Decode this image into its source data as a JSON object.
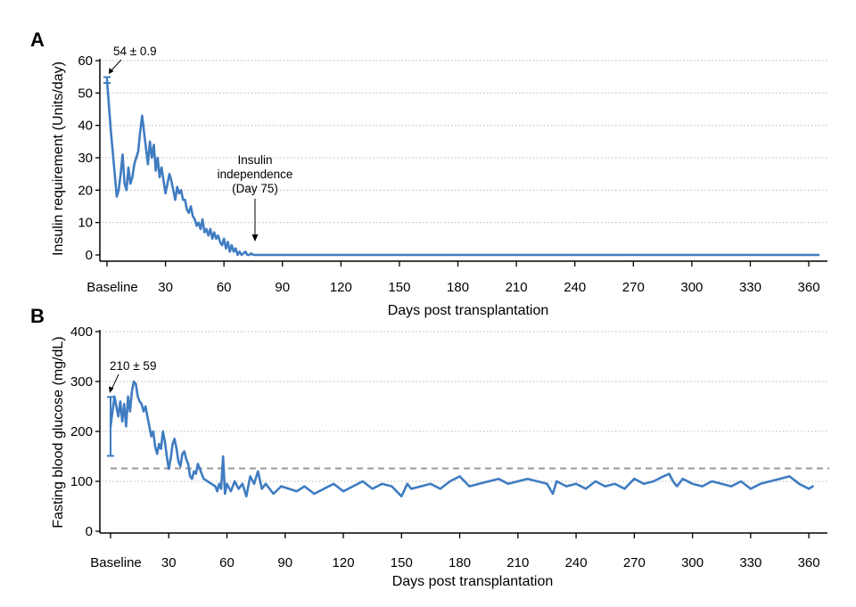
{
  "colors": {
    "series": "#3f7cc1",
    "grid": "#b8b8b8",
    "threshold": "#9a9a9a",
    "axis": "#000000"
  },
  "chart_data": [
    {
      "panel": "A",
      "type": "line",
      "xlabel": "Days post transplantation",
      "ylabel": "Insulin requirement (Units/day)",
      "xlim": [
        0,
        365
      ],
      "ylim": [
        0,
        60
      ],
      "x_ticks": [
        {
          "value": 0,
          "label": "Baseline"
        },
        {
          "value": 30,
          "label": "30"
        },
        {
          "value": 60,
          "label": "60"
        },
        {
          "value": 90,
          "label": "90"
        },
        {
          "value": 120,
          "label": "120"
        },
        {
          "value": 150,
          "label": "150"
        },
        {
          "value": 180,
          "label": "180"
        },
        {
          "value": 210,
          "label": "210"
        },
        {
          "value": 240,
          "label": "240"
        },
        {
          "value": 270,
          "label": "270"
        },
        {
          "value": 300,
          "label": "300"
        },
        {
          "value": 330,
          "label": "330"
        },
        {
          "value": 360,
          "label": "360"
        }
      ],
      "y_ticks": [
        0,
        10,
        20,
        30,
        40,
        50,
        60
      ],
      "grid": "horizontal dotted",
      "baseline": {
        "x": 0,
        "y": 54,
        "error": 0.9
      },
      "series": [
        {
          "x": [
            0,
            2,
            4,
            5,
            6,
            7,
            8,
            9,
            10,
            11,
            12,
            13,
            14,
            15,
            16,
            17,
            18,
            19,
            20,
            21,
            22,
            23,
            24,
            25,
            26,
            27,
            28,
            29,
            30,
            31,
            32,
            33,
            34,
            35,
            36,
            37,
            38,
            39,
            40,
            41,
            42,
            43,
            44,
            45,
            46,
            47,
            48,
            49,
            50,
            51,
            52,
            53,
            54,
            55,
            56,
            57,
            58,
            59,
            60,
            61,
            62,
            63,
            64,
            65,
            66,
            67,
            68,
            69,
            70,
            71,
            72,
            73,
            74,
            75,
            76,
            80,
            90,
            120,
            150,
            180,
            210,
            240,
            270,
            300,
            330,
            365
          ],
          "values": [
            54,
            38,
            25,
            18,
            20,
            25,
            31,
            22,
            20,
            27,
            22,
            24,
            28,
            30,
            32,
            38,
            43,
            38,
            33,
            28,
            35,
            30,
            34,
            26,
            30,
            24,
            27,
            23,
            19,
            22,
            25,
            23,
            20,
            17,
            21,
            19,
            20,
            17,
            17,
            14,
            13,
            15,
            12,
            11,
            9,
            10,
            8,
            11,
            7,
            8,
            6,
            8,
            5,
            7,
            5,
            6,
            4,
            3,
            5,
            2,
            4,
            1,
            3,
            1,
            2,
            0,
            1,
            0,
            0.5,
            1,
            0,
            0,
            0.5,
            0,
            0,
            0,
            0,
            0,
            0,
            0,
            0,
            0,
            0,
            0,
            0,
            0
          ]
        }
      ],
      "annotations": [
        {
          "text": "54 ± 0.9",
          "x": 0,
          "y": 54
        },
        {
          "lines": [
            "Insulin",
            "independence",
            "(Day 75)"
          ],
          "x": 75,
          "y": 0
        }
      ]
    },
    {
      "panel": "B",
      "type": "line",
      "xlabel": "Days post transplantation",
      "ylabel": "Fasting blood glucose (mg/dL)",
      "xlim": [
        0,
        365
      ],
      "ylim": [
        0,
        400
      ],
      "x_ticks": [
        {
          "value": 0,
          "label": "Baseline"
        },
        {
          "value": 30,
          "label": "30"
        },
        {
          "value": 60,
          "label": "60"
        },
        {
          "value": 90,
          "label": "90"
        },
        {
          "value": 120,
          "label": "120"
        },
        {
          "value": 150,
          "label": "150"
        },
        {
          "value": 180,
          "label": "180"
        },
        {
          "value": 210,
          "label": "210"
        },
        {
          "value": 240,
          "label": "240"
        },
        {
          "value": 270,
          "label": "270"
        },
        {
          "value": 300,
          "label": "300"
        },
        {
          "value": 330,
          "label": "330"
        },
        {
          "value": 360,
          "label": "360"
        }
      ],
      "y_ticks": [
        0,
        100,
        200,
        300,
        400
      ],
      "grid": "horizontal dotted",
      "reference_line": 126,
      "baseline": {
        "x": 0,
        "y": 210,
        "error": 59
      },
      "series": [
        {
          "x": [
            0,
            1,
            2,
            3,
            4,
            5,
            6,
            7,
            8,
            9,
            10,
            11,
            12,
            13,
            14,
            15,
            16,
            17,
            18,
            19,
            20,
            21,
            22,
            23,
            24,
            25,
            26,
            27,
            28,
            29,
            30,
            31,
            32,
            33,
            34,
            35,
            36,
            37,
            38,
            39,
            40,
            41,
            42,
            43,
            44,
            45,
            46,
            47,
            48,
            50,
            52,
            54,
            55,
            56,
            57,
            58,
            59,
            60,
            62,
            64,
            66,
            68,
            70,
            72,
            74,
            76,
            78,
            80,
            84,
            88,
            92,
            96,
            100,
            105,
            110,
            115,
            120,
            125,
            130,
            135,
            140,
            145,
            150,
            153,
            155,
            160,
            165,
            170,
            175,
            180,
            185,
            190,
            195,
            200,
            205,
            210,
            215,
            220,
            225,
            228,
            230,
            235,
            240,
            245,
            250,
            255,
            260,
            265,
            270,
            275,
            280,
            285,
            288,
            290,
            292,
            295,
            300,
            305,
            310,
            315,
            320,
            325,
            330,
            335,
            340,
            345,
            350,
            355,
            360,
            362
          ],
          "values": [
            210,
            240,
            270,
            250,
            230,
            260,
            220,
            255,
            210,
            270,
            240,
            280,
            300,
            295,
            270,
            260,
            255,
            240,
            250,
            230,
            210,
            190,
            200,
            170,
            155,
            175,
            165,
            200,
            180,
            150,
            125,
            145,
            175,
            185,
            165,
            140,
            130,
            155,
            160,
            145,
            135,
            110,
            105,
            120,
            115,
            135,
            125,
            115,
            105,
            100,
            95,
            90,
            80,
            95,
            85,
            150,
            75,
            95,
            80,
            100,
            85,
            95,
            70,
            110,
            95,
            120,
            85,
            95,
            75,
            90,
            85,
            80,
            90,
            75,
            85,
            95,
            80,
            90,
            100,
            85,
            95,
            90,
            70,
            95,
            85,
            90,
            95,
            85,
            100,
            110,
            90,
            95,
            100,
            105,
            95,
            100,
            105,
            100,
            95,
            75,
            100,
            90,
            95,
            85,
            100,
            90,
            95,
            85,
            105,
            95,
            100,
            110,
            115,
            100,
            90,
            105,
            95,
            90,
            100,
            95,
            90,
            100,
            85,
            95,
            100,
            105,
            110,
            95,
            85,
            90
          ]
        }
      ],
      "annotations": [
        {
          "text": "210 ± 59",
          "x": 0,
          "y": 270
        }
      ]
    }
  ]
}
